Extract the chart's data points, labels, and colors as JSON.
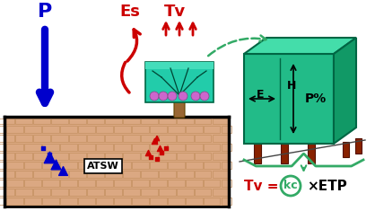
{
  "bg_color": "#ffffff",
  "soil_color": "#dba882",
  "brick_line_color": "#c49060",
  "tank_border": "#000000",
  "blue_color": "#0000cc",
  "red_color": "#cc0000",
  "green_dark": "#006644",
  "canopy_color": "#22ccaa",
  "canopy_top": "#44ddbb",
  "canopy_right": "#11aa88",
  "trunk_color": "#996633",
  "grape_color": "#cc66cc",
  "dashed_green": "#33aa66",
  "post_color": "#882200",
  "kc_green": "#33aa66",
  "P_label": "P",
  "Es_label": "Es",
  "Tv_label": "Tv",
  "ATSW_label": "ATSW",
  "E_label": "E",
  "H_label": "H",
  "Ppct_label": "P%",
  "kc_label": "kc",
  "etp_label": "×ETP",
  "tv_formula": "Tv ="
}
